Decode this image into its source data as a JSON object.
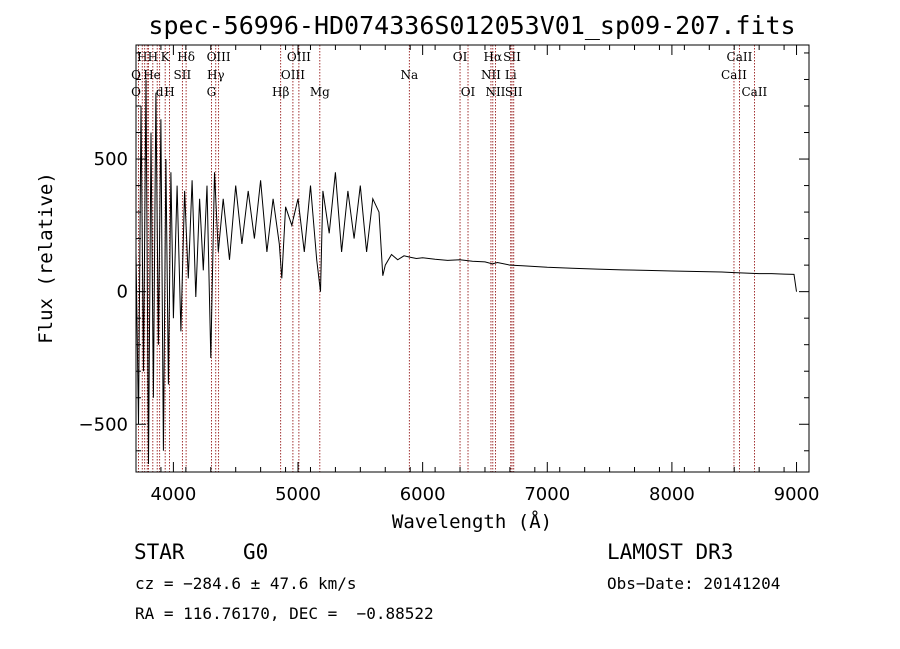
{
  "chart_data": {
    "type": "line",
    "title": "spec-56996-HD074336S012053V01_sp09-207.fits",
    "xlabel": "Wavelength (Å)",
    "ylabel": "Flux (relative)",
    "xlim": [
      3700,
      9100
    ],
    "ylim": [
      -680,
      930
    ],
    "xticks": [
      4000,
      5000,
      6000,
      7000,
      8000,
      9000
    ],
    "yticks": [
      -500,
      0,
      500
    ],
    "grid": false,
    "series": [
      {
        "color": "#000000",
        "x": [
          3700,
          3720,
          3740,
          3760,
          3780,
          3800,
          3820,
          3840,
          3860,
          3880,
          3900,
          3920,
          3940,
          3960,
          3980,
          4000,
          4030,
          4060,
          4090,
          4120,
          4150,
          4180,
          4210,
          4240,
          4270,
          4300,
          4330,
          4360,
          4400,
          4450,
          4500,
          4550,
          4600,
          4650,
          4700,
          4750,
          4800,
          4850,
          4870,
          4900,
          4950,
          5000,
          5050,
          5100,
          5150,
          5180,
          5200,
          5250,
          5300,
          5350,
          5400,
          5450,
          5500,
          5550,
          5600,
          5650,
          5680,
          5700,
          5750,
          5800,
          5850,
          5900,
          5950,
          6000,
          6100,
          6200,
          6300,
          6400,
          6500,
          6560,
          6600,
          6700,
          6800,
          6900,
          7000,
          7200,
          7400,
          7600,
          7800,
          8000,
          8200,
          8400,
          8500,
          8600,
          8700,
          8800,
          8900,
          8980,
          9000
        ],
        "y": [
          150,
          -500,
          700,
          -300,
          800,
          -650,
          600,
          -400,
          750,
          -200,
          650,
          -600,
          500,
          -350,
          450,
          -100,
          400,
          -150,
          380,
          50,
          420,
          -20,
          350,
          80,
          400,
          -250,
          450,
          150,
          350,
          120,
          400,
          180,
          380,
          200,
          420,
          150,
          350,
          180,
          50,
          320,
          250,
          350,
          150,
          400,
          120,
          0,
          380,
          220,
          450,
          150,
          380,
          200,
          400,
          150,
          350,
          300,
          60,
          100,
          140,
          120,
          135,
          130,
          125,
          128,
          122,
          118,
          120,
          115,
          112,
          105,
          110,
          100,
          98,
          95,
          92,
          88,
          85,
          82,
          80,
          78,
          76,
          74,
          72,
          70,
          68,
          68,
          66,
          65,
          0
        ]
      }
    ],
    "line_marks": [
      {
        "wl": 3700,
        "labels": [
          {
            "text": "O",
            "row": 1
          },
          {
            "text": "O",
            "row": 2
          }
        ]
      },
      {
        "wl": 3720,
        "labels": []
      },
      {
        "wl": 3750,
        "labels": [
          {
            "text": "H",
            "row": 0
          }
        ]
      },
      {
        "wl": 3770,
        "labels": []
      },
      {
        "wl": 3790,
        "labels": []
      },
      {
        "wl": 3800,
        "labels": [
          {
            "text": "H",
            "row": 1
          }
        ]
      },
      {
        "wl": 3835,
        "labels": [
          {
            "text": "H",
            "row": 0
          }
        ]
      },
      {
        "wl": 3870,
        "labels": [
          {
            "text": "e",
            "row": 1
          }
        ]
      },
      {
        "wl": 3890,
        "labels": [
          {
            "text": "d",
            "row": 2
          }
        ]
      },
      {
        "wl": 3934,
        "labels": [
          {
            "text": "K",
            "row": 0
          }
        ]
      },
      {
        "wl": 3969,
        "labels": [
          {
            "text": "H",
            "row": 2
          }
        ]
      },
      {
        "wl": 4072,
        "labels": [
          {
            "text": "SII",
            "row": 1
          }
        ]
      },
      {
        "wl": 4102,
        "labels": [
          {
            "text": "Hδ",
            "row": 0
          }
        ]
      },
      {
        "wl": 4305,
        "labels": [
          {
            "text": "G",
            "row": 2
          }
        ]
      },
      {
        "wl": 4340,
        "labels": [
          {
            "text": "Hγ",
            "row": 1
          }
        ]
      },
      {
        "wl": 4363,
        "labels": [
          {
            "text": "OIII",
            "row": 0
          }
        ]
      },
      {
        "wl": 4861,
        "labels": [
          {
            "text": "Hβ",
            "row": 2
          }
        ]
      },
      {
        "wl": 4959,
        "labels": [
          {
            "text": "OIII",
            "row": 1
          }
        ]
      },
      {
        "wl": 5007,
        "labels": [
          {
            "text": "OIII",
            "row": 0
          }
        ]
      },
      {
        "wl": 5175,
        "labels": [
          {
            "text": "Mg",
            "row": 2
          }
        ]
      },
      {
        "wl": 5893,
        "labels": [
          {
            "text": "Na",
            "row": 1
          }
        ]
      },
      {
        "wl": 6300,
        "labels": [
          {
            "text": "OI",
            "row": 0
          }
        ]
      },
      {
        "wl": 6364,
        "labels": [
          {
            "text": "OI",
            "row": 2
          }
        ]
      },
      {
        "wl": 6548,
        "labels": [
          {
            "text": "NII",
            "row": 1
          }
        ]
      },
      {
        "wl": 6563,
        "labels": [
          {
            "text": "Hα",
            "row": 0
          }
        ]
      },
      {
        "wl": 6584,
        "labels": [
          {
            "text": "NII",
            "row": 2
          }
        ]
      },
      {
        "wl": 6707,
        "labels": [
          {
            "text": "Li",
            "row": 1
          }
        ]
      },
      {
        "wl": 6717,
        "labels": [
          {
            "text": "SII",
            "row": 0
          }
        ]
      },
      {
        "wl": 6731,
        "labels": [
          {
            "text": "SII",
            "row": 2
          }
        ]
      },
      {
        "wl": 8498,
        "labels": [
          {
            "text": "CaII",
            "row": 1
          }
        ]
      },
      {
        "wl": 8542,
        "labels": [
          {
            "text": "CaII",
            "row": 0
          }
        ]
      },
      {
        "wl": 8662,
        "labels": [
          {
            "text": "CaII",
            "row": 2
          }
        ]
      }
    ],
    "line_mark_color": "#8b0000"
  },
  "info": {
    "class_label": "STAR",
    "subclass": "G0",
    "survey": "LAMOST DR3",
    "cz": "cz = −284.6 ± 47.6 km/s",
    "obs_date": "Obs−Date: 20141204",
    "coords": "RA = 116.76170, DEC =  −0.88522"
  }
}
